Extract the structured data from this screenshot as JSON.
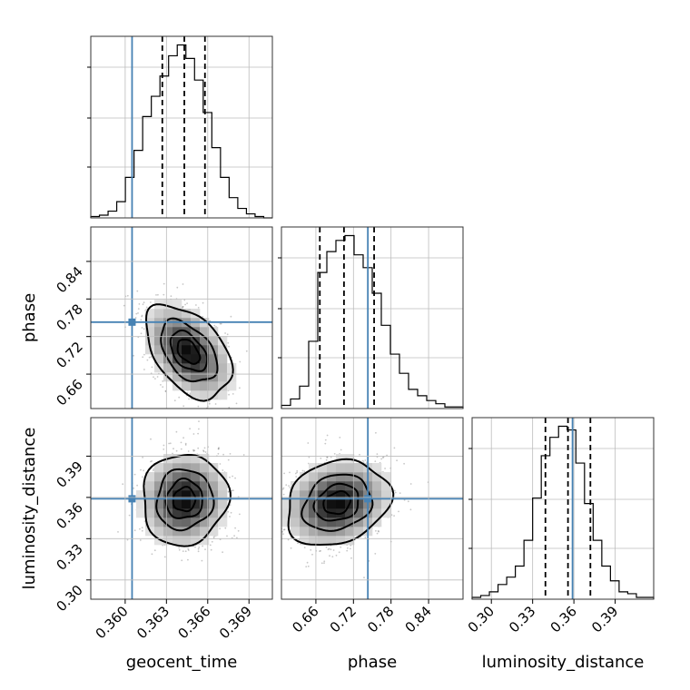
{
  "chart_data": {
    "type": "corner",
    "parameters": [
      {
        "name": "geocent_time",
        "label": "geocent_time",
        "range": [
          0.3575,
          0.3707
        ],
        "ticks": [
          "0.360",
          "0.363",
          "0.366",
          "0.369"
        ],
        "truth": 0.3605,
        "quantiles": [
          0.3627,
          0.3643,
          0.3658
        ]
      },
      {
        "name": "phase",
        "label": "phase",
        "range": [
          0.605,
          0.895
        ],
        "ticks": [
          "0.66",
          "0.72",
          "0.78",
          "0.84"
        ],
        "truth": 0.743,
        "quantiles": [
          0.6663,
          0.7049,
          0.753
        ]
      },
      {
        "name": "luminosity_distance",
        "label": "luminosity_distance",
        "range": [
          0.286,
          0.418
        ],
        "ticks": [
          "0.30",
          "0.33",
          "0.36",
          "0.39"
        ],
        "truth": 0.359,
        "quantiles": [
          0.3393,
          0.3557,
          0.372
        ]
      }
    ],
    "histograms": [
      [
        1,
        2,
        5,
        12,
        30,
        50,
        75,
        90,
        105,
        120,
        128,
        118,
        102,
        78,
        52,
        30,
        15,
        7,
        3,
        1,
        0
      ],
      [
        2,
        6,
        14,
        42,
        85,
        98,
        105,
        108,
        96,
        88,
        72,
        52,
        34,
        22,
        12,
        8,
        5,
        3,
        1,
        1
      ],
      [
        1,
        2,
        4,
        8,
        12,
        18,
        32,
        55,
        78,
        88,
        94,
        92,
        74,
        52,
        32,
        18,
        10,
        4,
        3,
        1,
        1
      ]
    ],
    "density_2d": [
      {
        "x": "geocent_time",
        "y": "phase",
        "center": [
          0.3646,
          0.696
        ],
        "sigma": [
          0.0015,
          0.036
        ],
        "rho": -0.45
      },
      {
        "x": "geocent_time",
        "y": "luminosity_distance",
        "center": [
          0.3643,
          0.3585
        ],
        "sigma": [
          0.0015,
          0.016
        ],
        "rho": 0.05
      },
      {
        "x": "phase",
        "y": "luminosity_distance",
        "center": [
          0.694,
          0.356
        ],
        "sigma": [
          0.04,
          0.015
        ],
        "rho": 0.2
      }
    ],
    "contour_levels": [
      "0.5-sigma",
      "1-sigma",
      "1.5-sigma",
      "2-sigma"
    ],
    "colors": {
      "truth": "#4682b4",
      "hist": "#000000",
      "grid": "#bdbdbd",
      "density": "#000000"
    }
  }
}
